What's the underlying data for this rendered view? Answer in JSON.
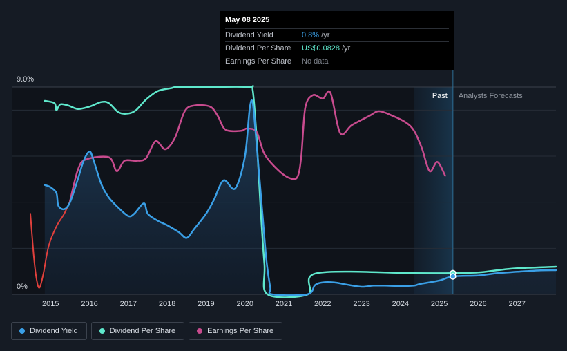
{
  "tooltip": {
    "date": "May 08 2025",
    "rows": [
      {
        "label": "Dividend Yield",
        "value": "0.8%",
        "unit": " /yr",
        "color": "#3a9fe6"
      },
      {
        "label": "Dividend Per Share",
        "value": "US$0.0828",
        "unit": " /yr",
        "color": "#5fe8cc"
      },
      {
        "label": "Earnings Per Share",
        "value": "No data",
        "unit": "",
        "color": "#7c818a"
      }
    ]
  },
  "colors": {
    "dividend_yield": "#3a9fe6",
    "dividend_per_share": "#5fe8cc",
    "earnings_per_share": "#c84b8e",
    "earnings_negative": "#e0403c",
    "background": "#151b24"
  },
  "legend": [
    {
      "label": "Dividend Yield",
      "color": "#3a9fe6"
    },
    {
      "label": "Dividend Per Share",
      "color": "#5fe8cc"
    },
    {
      "label": "Earnings Per Share",
      "color": "#c84b8e"
    }
  ],
  "chart_data": {
    "type": "line",
    "title": "",
    "xlabel": "",
    "ylabel": "",
    "y_tick_labels": [
      "9.0%",
      "0%"
    ],
    "ylim": [
      0,
      9.0
    ],
    "xlim": [
      2014.0,
      2028.0
    ],
    "x_tick_labels": [
      "2015",
      "2016",
      "2017",
      "2018",
      "2019",
      "2020",
      "2021",
      "2022",
      "2023",
      "2024",
      "2025",
      "2026",
      "2027"
    ],
    "x_ticks": [
      2015,
      2016,
      2017,
      2018,
      2019,
      2020,
      2021,
      2022,
      2023,
      2024,
      2025,
      2026,
      2027
    ],
    "past_label": "Past",
    "forecast_label": "Analysts Forecasts",
    "forecast_start": 2025.35,
    "highlight_start": 2024.35,
    "series": [
      {
        "name": "Dividend Yield",
        "unit": "%",
        "color": "#3a9fe6",
        "points": [
          [
            2014.85,
            4.75
          ],
          [
            2015.0,
            4.65
          ],
          [
            2015.15,
            4.4
          ],
          [
            2015.2,
            3.85
          ],
          [
            2015.35,
            3.7
          ],
          [
            2015.5,
            4.0
          ],
          [
            2015.7,
            5.0
          ],
          [
            2015.85,
            5.8
          ],
          [
            2016.0,
            6.2
          ],
          [
            2016.1,
            5.85
          ],
          [
            2016.3,
            4.8
          ],
          [
            2016.5,
            4.2
          ],
          [
            2016.75,
            3.75
          ],
          [
            2017.0,
            3.4
          ],
          [
            2017.15,
            3.5
          ],
          [
            2017.4,
            3.95
          ],
          [
            2017.5,
            3.5
          ],
          [
            2017.75,
            3.2
          ],
          [
            2018.0,
            3.0
          ],
          [
            2018.3,
            2.7
          ],
          [
            2018.5,
            2.45
          ],
          [
            2018.7,
            2.85
          ],
          [
            2019.0,
            3.5
          ],
          [
            2019.2,
            4.1
          ],
          [
            2019.45,
            4.95
          ],
          [
            2019.75,
            4.6
          ],
          [
            2020.0,
            6.0
          ],
          [
            2020.12,
            8.05
          ],
          [
            2020.2,
            8.3
          ],
          [
            2020.3,
            6.5
          ],
          [
            2020.45,
            3.5
          ],
          [
            2020.55,
            1.5
          ],
          [
            2020.65,
            0.3
          ],
          [
            2020.7,
            0.0
          ],
          [
            2021.6,
            0.0
          ],
          [
            2021.8,
            0.4
          ],
          [
            2022.0,
            0.52
          ],
          [
            2022.3,
            0.52
          ],
          [
            2022.6,
            0.43
          ],
          [
            2023.0,
            0.33
          ],
          [
            2023.3,
            0.38
          ],
          [
            2023.6,
            0.38
          ],
          [
            2024.0,
            0.36
          ],
          [
            2024.35,
            0.38
          ],
          [
            2024.5,
            0.45
          ],
          [
            2025.0,
            0.6
          ],
          [
            2025.35,
            0.78
          ],
          [
            2026.0,
            0.82
          ],
          [
            2026.5,
            0.92
          ],
          [
            2027.0,
            0.98
          ],
          [
            2027.6,
            1.04
          ],
          [
            2028.0,
            1.05
          ]
        ]
      },
      {
        "name": "Dividend Per Share",
        "unit": "US$",
        "color": "#5fe8cc",
        "points": [
          [
            2014.85,
            8.4
          ],
          [
            2015.1,
            8.3
          ],
          [
            2015.15,
            8.0
          ],
          [
            2015.25,
            8.25
          ],
          [
            2015.45,
            8.2
          ],
          [
            2015.7,
            8.05
          ],
          [
            2016.0,
            8.15
          ],
          [
            2016.3,
            8.35
          ],
          [
            2016.5,
            8.3
          ],
          [
            2016.75,
            7.9
          ],
          [
            2017.0,
            7.85
          ],
          [
            2017.2,
            8.0
          ],
          [
            2017.45,
            8.45
          ],
          [
            2017.75,
            8.82
          ],
          [
            2018.1,
            8.95
          ],
          [
            2018.25,
            9.0
          ],
          [
            2019.0,
            9.0
          ],
          [
            2020.1,
            9.0
          ],
          [
            2020.2,
            8.85
          ],
          [
            2020.3,
            6.8
          ],
          [
            2020.4,
            3.8
          ],
          [
            2020.5,
            1.3
          ],
          [
            2020.58,
            0.0
          ],
          [
            2021.62,
            0.0
          ],
          [
            2021.85,
            0.92
          ],
          [
            2024.35,
            0.92
          ],
          [
            2025.35,
            0.92
          ],
          [
            2026.0,
            0.95
          ],
          [
            2026.5,
            1.05
          ],
          [
            2027.0,
            1.13
          ],
          [
            2028.0,
            1.2
          ]
        ]
      },
      {
        "name": "Earnings Per Share",
        "unit": "US$",
        "color": "#c84b8e",
        "points": [
          [
            2014.48,
            3.5
          ],
          [
            2014.57,
            1.6
          ],
          [
            2014.65,
            0.55
          ],
          [
            2014.72,
            0.3
          ],
          [
            2014.82,
            0.95
          ],
          [
            2014.95,
            2.1
          ],
          [
            2015.15,
            2.95
          ],
          [
            2015.35,
            3.5
          ],
          [
            2015.5,
            4.05
          ],
          [
            2015.7,
            5.4
          ],
          [
            2015.9,
            5.85
          ],
          [
            2016.5,
            5.95
          ],
          [
            2016.7,
            5.35
          ],
          [
            2016.9,
            5.8
          ],
          [
            2017.2,
            5.8
          ],
          [
            2017.45,
            5.9
          ],
          [
            2017.7,
            6.65
          ],
          [
            2017.95,
            6.3
          ],
          [
            2018.2,
            6.8
          ],
          [
            2018.45,
            7.95
          ],
          [
            2018.7,
            8.2
          ],
          [
            2019.1,
            8.15
          ],
          [
            2019.3,
            7.75
          ],
          [
            2019.5,
            7.15
          ],
          [
            2019.9,
            7.1
          ],
          [
            2020.05,
            7.2
          ],
          [
            2020.3,
            7.05
          ],
          [
            2020.5,
            6.1
          ],
          [
            2020.85,
            5.4
          ],
          [
            2021.15,
            5.05
          ],
          [
            2021.35,
            5.1
          ],
          [
            2021.45,
            6.0
          ],
          [
            2021.55,
            8.1
          ],
          [
            2021.75,
            8.65
          ],
          [
            2022.0,
            8.5
          ],
          [
            2022.2,
            8.75
          ],
          [
            2022.45,
            7.0
          ],
          [
            2022.75,
            7.35
          ],
          [
            2023.2,
            7.75
          ],
          [
            2023.45,
            7.95
          ],
          [
            2023.8,
            7.75
          ],
          [
            2024.15,
            7.45
          ],
          [
            2024.35,
            7.1
          ],
          [
            2024.55,
            6.35
          ],
          [
            2024.75,
            5.35
          ],
          [
            2024.95,
            5.75
          ],
          [
            2025.15,
            5.15
          ]
        ]
      }
    ]
  }
}
